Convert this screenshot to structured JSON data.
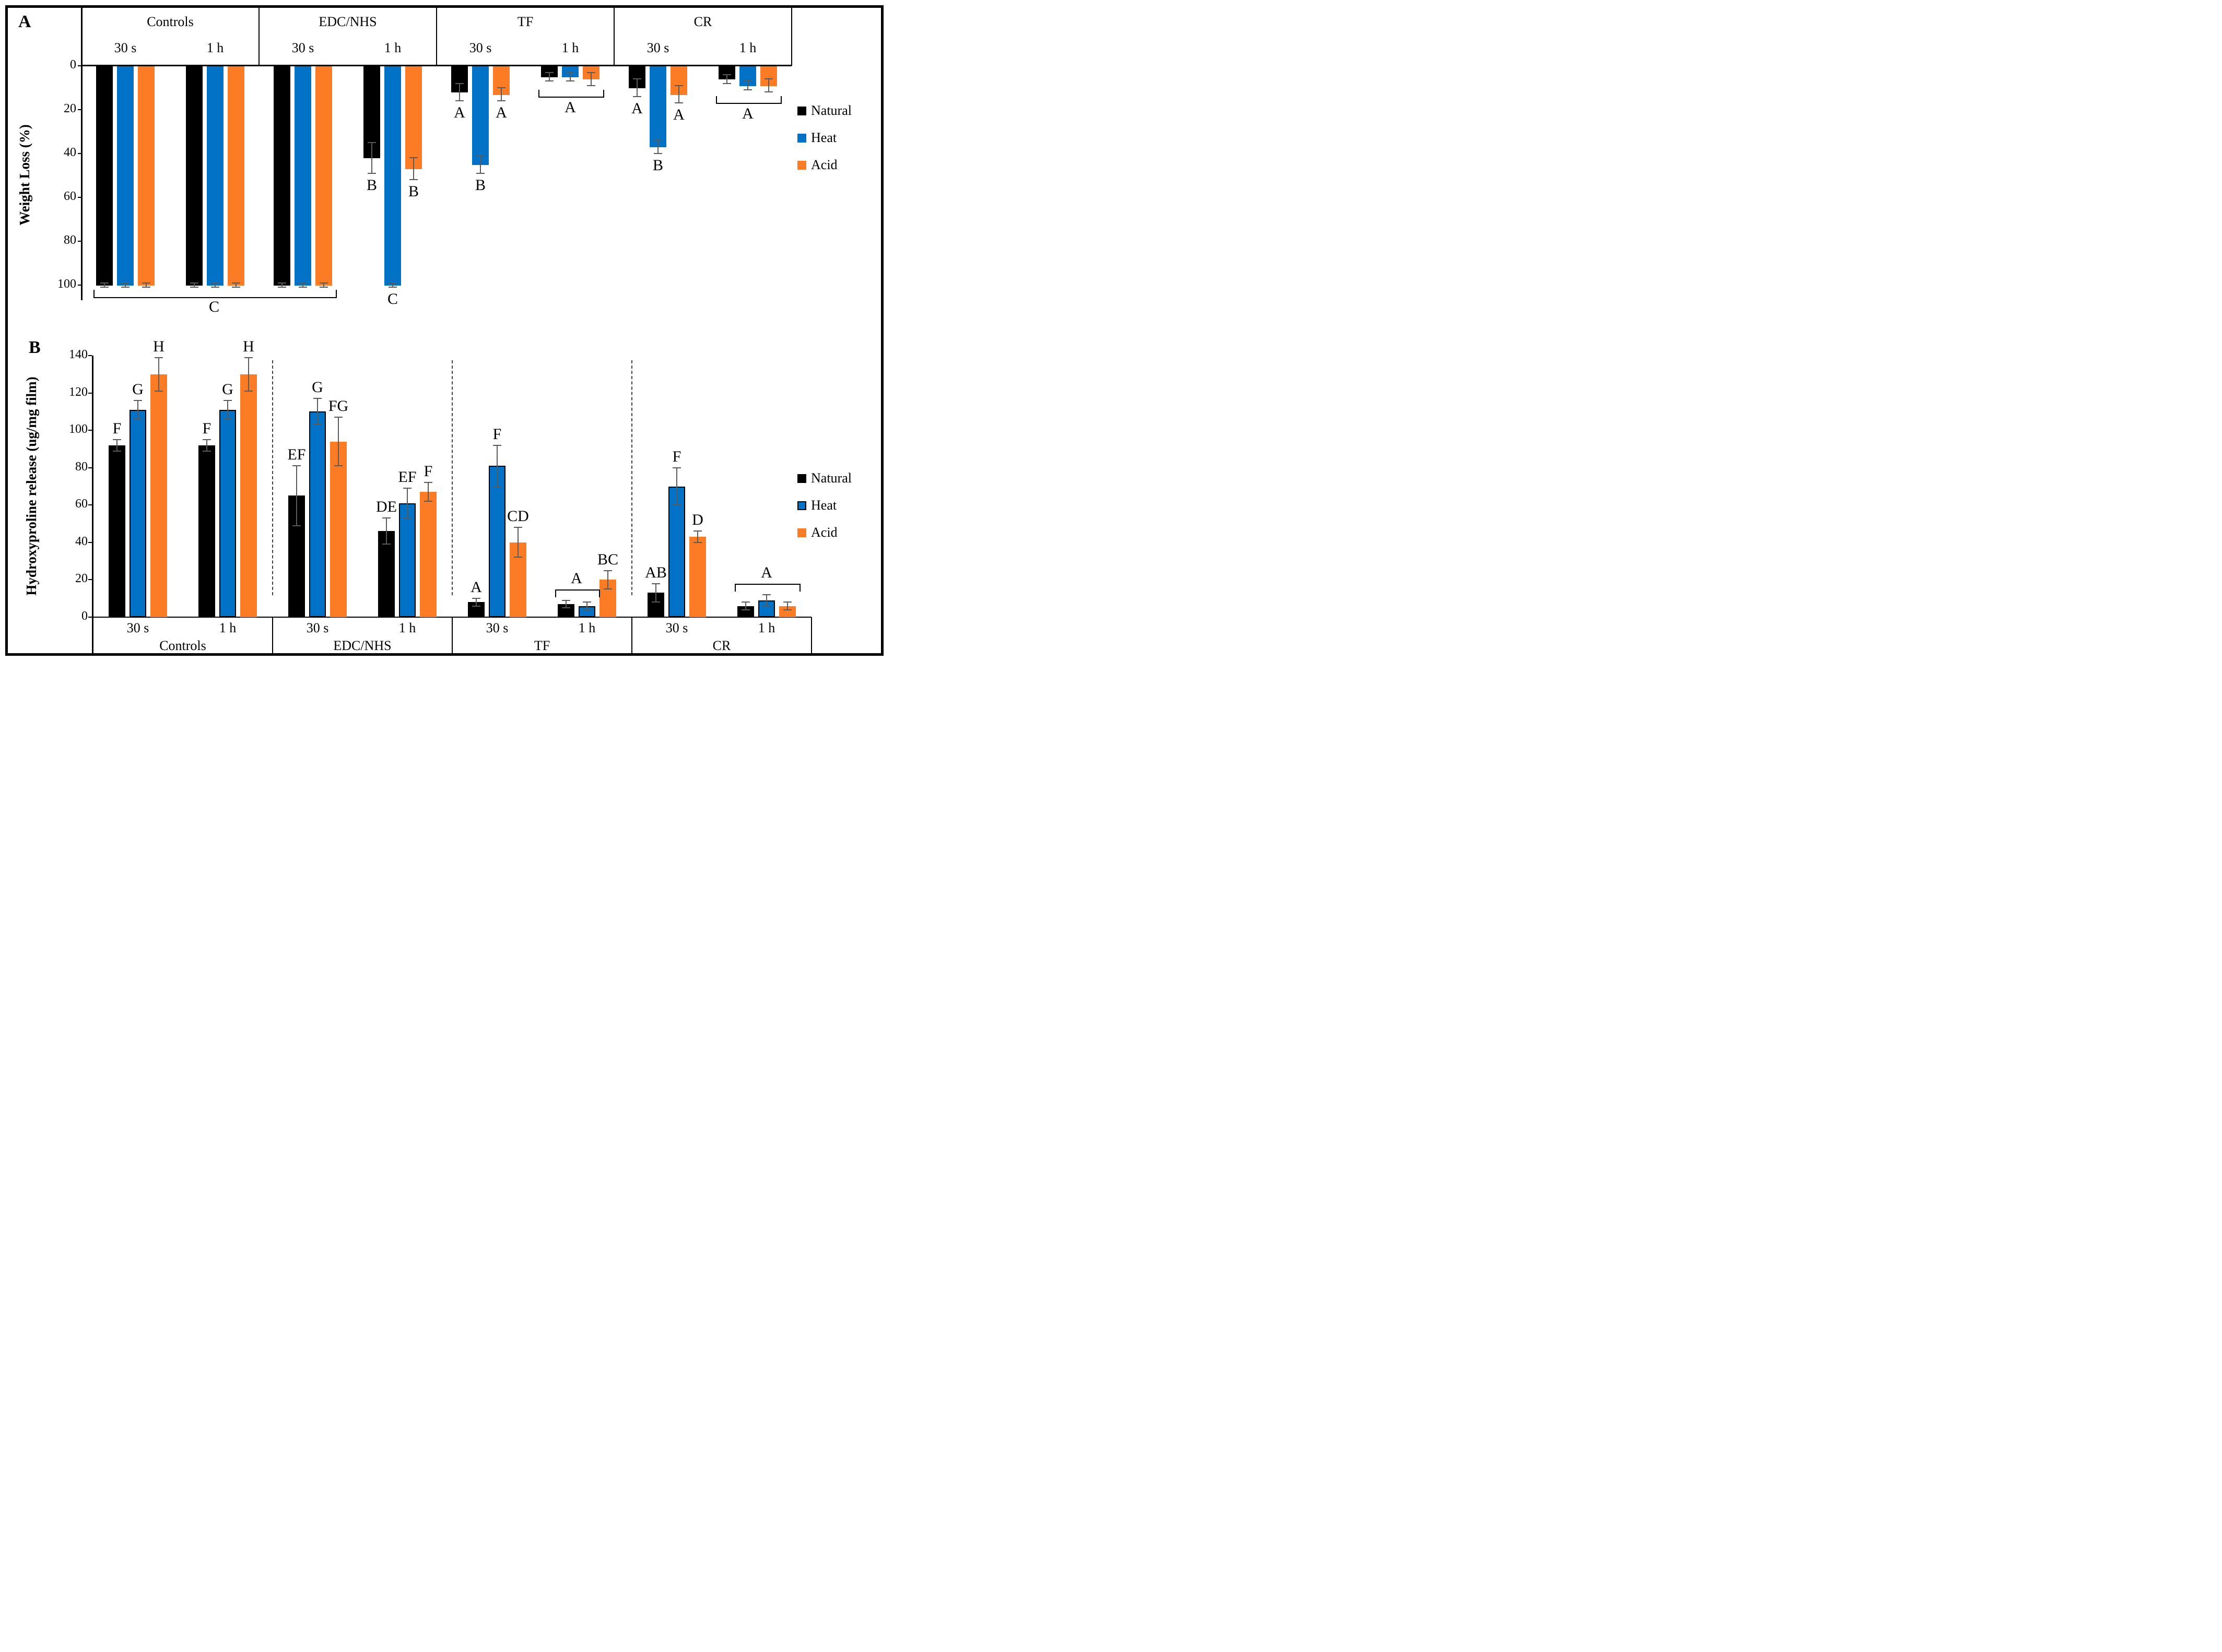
{
  "figure_title": "Two-panel grouped bar figure",
  "legend_labels": [
    "Natural",
    "Heat",
    "Acid"
  ],
  "colors": {
    "natural": "#000000",
    "heat": "#0272C6",
    "acid": "#FC7C26",
    "error_bar": "#5a5a5a"
  },
  "chart_data": [
    {
      "type": "bar",
      "panel_label": "A",
      "ylabel": "Weight Loss (%)",
      "bar_direction": "down",
      "ylim": [
        0,
        100
      ],
      "yticks": [
        0,
        20,
        40,
        60,
        80,
        100
      ],
      "grid": false,
      "legend_position": "right",
      "series": [
        {
          "name": "Natural",
          "color": "#000000"
        },
        {
          "name": "Heat",
          "color": "#0272C6"
        },
        {
          "name": "Acid",
          "color": "#FC7C26"
        }
      ],
      "groups": [
        {
          "name": "Controls",
          "subgroups": [
            {
              "name": "30 s",
              "values": [
                100,
                100,
                100
              ],
              "errors": [
                1,
                1,
                1
              ],
              "letters": [
                "",
                "",
                ""
              ]
            },
            {
              "name": "1 h",
              "values": [
                100,
                100,
                100
              ],
              "errors": [
                1,
                1,
                1
              ],
              "letters": [
                "",
                "",
                ""
              ]
            }
          ]
        },
        {
          "name": "EDC/NHS",
          "subgroups": [
            {
              "name": "30 s",
              "values": [
                100,
                100,
                100
              ],
              "errors": [
                1,
                1,
                1
              ],
              "letters": [
                "",
                "",
                ""
              ]
            },
            {
              "name": "1 h",
              "values": [
                42,
                100,
                47
              ],
              "errors": [
                7,
                1,
                5
              ],
              "letters": [
                "B",
                "C",
                "B"
              ]
            }
          ]
        },
        {
          "name": "TF",
          "subgroups": [
            {
              "name": "30 s",
              "values": [
                12,
                45,
                13
              ],
              "errors": [
                4,
                4,
                3
              ],
              "letters": [
                "A",
                "B",
                "A"
              ],
              "bracket": null
            },
            {
              "name": "1 h",
              "values": [
                5,
                5,
                6
              ],
              "errors": [
                2,
                2,
                3
              ],
              "letters": [
                "",
                "",
                ""
              ],
              "bracket": {
                "label": "A",
                "span": [
                  0,
                  2
                ]
              }
            }
          ]
        },
        {
          "name": "CR",
          "subgroups": [
            {
              "name": "30 s",
              "values": [
                10,
                37,
                13
              ],
              "errors": [
                4,
                3,
                4
              ],
              "letters": [
                "A",
                "B",
                "A"
              ],
              "bracket": null
            },
            {
              "name": "1 h",
              "values": [
                6,
                9,
                9
              ],
              "errors": [
                2,
                2,
                3
              ],
              "letters": [
                "",
                "",
                ""
              ],
              "bracket": {
                "label": "A",
                "span": [
                  0,
                  2
                ]
              }
            }
          ]
        }
      ],
      "extra_bracket": {
        "label": "C",
        "from_group": 0,
        "from_subgroup": 0,
        "to_group": 1,
        "to_subgroup": 0,
        "note": "spans Controls 30 s, Controls 1 h and EDC/NHS 30 s at 100% weight loss"
      }
    },
    {
      "type": "bar",
      "panel_label": "B",
      "ylabel": "Hydroxyproline release (ug/mg film)",
      "bar_direction": "up",
      "ylim": [
        0,
        140
      ],
      "yticks": [
        0,
        20,
        40,
        60,
        80,
        100,
        120,
        140
      ],
      "grid": false,
      "legend_position": "right",
      "group_separator": "dashed",
      "series": [
        {
          "name": "Natural",
          "color": "#000000"
        },
        {
          "name": "Heat",
          "color": "#0272C6"
        },
        {
          "name": "Acid",
          "color": "#FC7C26"
        }
      ],
      "groups": [
        {
          "name": "Controls",
          "subgroups": [
            {
              "name": "30 s",
              "values": [
                92,
                111,
                130
              ],
              "errors": [
                3,
                5,
                9
              ],
              "letters": [
                "F",
                "G",
                "H"
              ]
            },
            {
              "name": "1 h",
              "values": [
                92,
                111,
                130
              ],
              "errors": [
                3,
                5,
                9
              ],
              "letters": [
                "F",
                "G",
                "H"
              ]
            }
          ]
        },
        {
          "name": "EDC/NHS",
          "subgroups": [
            {
              "name": "30 s",
              "values": [
                65,
                110,
                94
              ],
              "errors": [
                16,
                7,
                13
              ],
              "letters": [
                "EF",
                "G",
                "FG"
              ]
            },
            {
              "name": "1 h",
              "values": [
                46,
                61,
                67
              ],
              "errors": [
                7,
                8,
                5
              ],
              "letters": [
                "DE",
                "EF",
                "F"
              ]
            }
          ]
        },
        {
          "name": "TF",
          "subgroups": [
            {
              "name": "30 s",
              "values": [
                8,
                81,
                40
              ],
              "errors": [
                2,
                11,
                8
              ],
              "letters": [
                "A",
                "F",
                "CD"
              ],
              "bracket": null
            },
            {
              "name": "1 h",
              "values": [
                7,
                6,
                20
              ],
              "errors": [
                2,
                2,
                5
              ],
              "letters": [
                "",
                "",
                "BC"
              ],
              "bracket": {
                "label": "A",
                "span": [
                  0,
                  1
                ]
              }
            }
          ]
        },
        {
          "name": "CR",
          "subgroups": [
            {
              "name": "30 s",
              "values": [
                13,
                70,
                43
              ],
              "errors": [
                5,
                10,
                3
              ],
              "letters": [
                "AB",
                "F",
                "D"
              ],
              "bracket": null
            },
            {
              "name": "1 h",
              "values": [
                6,
                9,
                6
              ],
              "errors": [
                2,
                3,
                2
              ],
              "letters": [
                "",
                "",
                ""
              ],
              "bracket": {
                "label": "A",
                "span": [
                  0,
                  2
                ]
              }
            }
          ]
        }
      ]
    }
  ]
}
